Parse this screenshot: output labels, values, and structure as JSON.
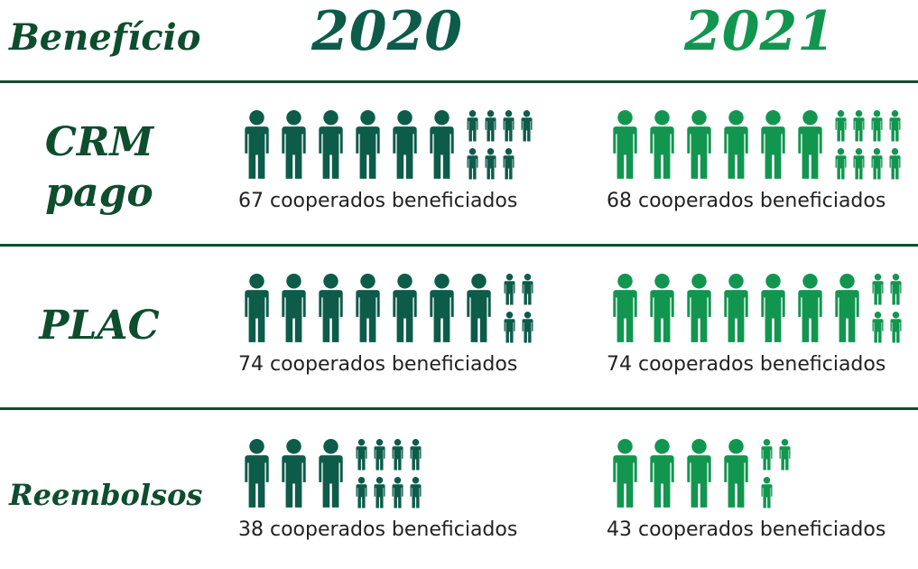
{
  "chart_data": {
    "type": "pictogram",
    "header": "Benefício",
    "categories": [
      "CRM pago",
      "PLAC",
      "Reembolsos"
    ],
    "series": [
      {
        "name": "2020",
        "color": "#0d5c4a",
        "values": [
          67,
          74,
          38
        ],
        "value_labels": [
          "67 cooperados beneficiados",
          "74 cooperados beneficiados",
          "38 cooperados beneficiados"
        ]
      },
      {
        "name": "2021",
        "color": "#12964f",
        "values": [
          68,
          74,
          43
        ],
        "value_labels": [
          "68 cooperados beneficiados",
          "74 cooperados beneficiados",
          "43 cooperados beneficiados"
        ]
      }
    ]
  }
}
